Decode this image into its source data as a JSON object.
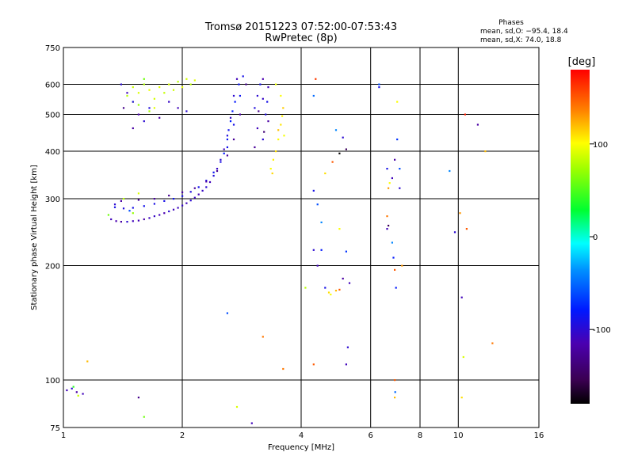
{
  "chart_data": {
    "type": "scatter",
    "title_line1": "Tromsø 20151223 07:52:00-07:53:43",
    "title_line2": "RwPretec (8p)",
    "stats": {
      "heading": "Phases",
      "line_o": "mean, sd,O: −95.4, 18.4",
      "line_x": "mean, sd,X:  74.0, 18.8"
    },
    "xlabel": "Frequency [MHz]",
    "ylabel": "Stationary phase Virtual Height [km]",
    "x_scale": "log",
    "y_scale": "log",
    "xlim": [
      1,
      16
    ],
    "ylim": [
      75,
      750
    ],
    "x_ticks": [
      1,
      2,
      4,
      6,
      8,
      10,
      16
    ],
    "x_gridlines": [
      2,
      4,
      6,
      8,
      10
    ],
    "y_ticks": [
      75,
      100,
      200,
      300,
      400,
      500,
      600,
      750
    ],
    "y_gridlines": [
      100,
      200,
      300,
      400,
      500,
      600
    ],
    "grid": true,
    "colorbar": {
      "label": "[deg]",
      "range": [
        -180,
        180
      ],
      "ticks": [
        100,
        0,
        -100
      ]
    },
    "series": [
      {
        "points": [
          [
            1.32,
            265,
            -110
          ],
          [
            1.36,
            262,
            -115
          ],
          [
            1.4,
            261,
            -120
          ],
          [
            1.45,
            261,
            -100
          ],
          [
            1.5,
            262,
            -110
          ],
          [
            1.55,
            263,
            -112
          ],
          [
            1.6,
            265,
            -118
          ],
          [
            1.65,
            267,
            -108
          ],
          [
            1.7,
            270,
            -105
          ],
          [
            1.75,
            272,
            -110
          ],
          [
            1.8,
            275,
            -115
          ],
          [
            1.85,
            278,
            -100
          ],
          [
            1.9,
            281,
            -110
          ],
          [
            1.95,
            284,
            -108
          ],
          [
            2.0,
            288,
            -105
          ],
          [
            2.05,
            292,
            -110
          ],
          [
            2.1,
            297,
            -100
          ],
          [
            2.15,
            302,
            -108
          ],
          [
            2.2,
            308,
            -112
          ],
          [
            2.25,
            315,
            -105
          ],
          [
            2.3,
            322,
            -100
          ],
          [
            2.35,
            332,
            -110
          ],
          [
            2.4,
            345,
            -95
          ],
          [
            2.45,
            360,
            -105
          ],
          [
            2.5,
            380,
            -100
          ],
          [
            2.55,
            405,
            -110
          ],
          [
            2.6,
            440,
            -95
          ],
          [
            2.65,
            490,
            -105
          ],
          [
            2.7,
            560,
            -100
          ],
          [
            2.75,
            620,
            -110
          ],
          [
            1.35,
            285,
            -90
          ],
          [
            1.42,
            283,
            -95
          ],
          [
            1.5,
            284,
            -90
          ],
          [
            1.6,
            287,
            -88
          ],
          [
            1.7,
            291,
            -92
          ],
          [
            1.8,
            296,
            -90
          ],
          [
            1.9,
            300,
            -85
          ],
          [
            2.0,
            305,
            -90
          ],
          [
            2.1,
            313,
            -95
          ],
          [
            2.2,
            322,
            -88
          ],
          [
            2.3,
            335,
            -90
          ],
          [
            2.4,
            352,
            -85
          ],
          [
            2.5,
            375,
            -92
          ],
          [
            2.6,
            410,
            -88
          ],
          [
            2.7,
            470,
            -90
          ],
          [
            2.8,
            560,
            -85
          ],
          [
            2.85,
            630,
            -90
          ],
          [
            1.4,
            296,
            -120
          ],
          [
            1.55,
            298,
            -125
          ],
          [
            1.7,
            300,
            -120
          ],
          [
            1.85,
            306,
            -128
          ],
          [
            2.0,
            312,
            -122
          ],
          [
            2.15,
            320,
            -125
          ],
          [
            2.3,
            333,
            -120
          ],
          [
            2.45,
            355,
            -128
          ],
          [
            2.6,
            390,
            -122
          ],
          [
            2.7,
            430,
            -125
          ],
          [
            2.8,
            500,
            -120
          ],
          [
            2.9,
            600,
            -128
          ],
          [
            2.55,
            395,
            -80
          ],
          [
            2.6,
            430,
            -82
          ],
          [
            2.65,
            480,
            -78
          ],
          [
            2.72,
            540,
            -80
          ],
          [
            2.78,
            600,
            -83
          ],
          [
            2.62,
            455,
            -86
          ],
          [
            2.68,
            510,
            -79
          ],
          [
            3.05,
            520,
            -95
          ],
          [
            3.1,
            560,
            -100
          ],
          [
            3.15,
            600,
            -90
          ],
          [
            3.2,
            550,
            -105
          ],
          [
            3.25,
            500,
            -95
          ],
          [
            3.1,
            460,
            -110
          ],
          [
            3.2,
            430,
            -100
          ],
          [
            3.3,
            480,
            -120
          ],
          [
            3.3,
            590,
            -110
          ],
          [
            3.05,
            410,
            -125
          ],
          [
            3.2,
            620,
            -115
          ],
          [
            3.28,
            540,
            -90
          ],
          [
            3.12,
            510,
            -130
          ],
          [
            3.22,
            450,
            -140
          ],
          [
            3.35,
            360,
            100
          ],
          [
            3.4,
            380,
            105
          ],
          [
            3.45,
            400,
            110
          ],
          [
            3.5,
            430,
            102
          ],
          [
            3.55,
            470,
            108
          ],
          [
            3.6,
            520,
            115
          ],
          [
            3.55,
            560,
            100
          ],
          [
            3.45,
            600,
            95
          ],
          [
            3.38,
            350,
            112
          ],
          [
            3.5,
            455,
            118
          ],
          [
            3.58,
            495,
            104
          ],
          [
            3.62,
            440,
            98
          ],
          [
            1.45,
            560,
            80
          ],
          [
            1.5,
            590,
            85
          ],
          [
            1.55,
            570,
            90
          ],
          [
            1.6,
            600,
            78
          ],
          [
            1.65,
            580,
            95
          ],
          [
            1.7,
            550,
            88
          ],
          [
            1.75,
            590,
            92
          ],
          [
            1.8,
            570,
            84
          ],
          [
            1.85,
            600,
            90
          ],
          [
            1.9,
            580,
            86
          ],
          [
            1.95,
            610,
            80
          ],
          [
            2.0,
            590,
            94
          ],
          [
            2.05,
            620,
            88
          ],
          [
            2.1,
            600,
            82
          ],
          [
            2.15,
            615,
            92
          ],
          [
            1.55,
            530,
            70
          ],
          [
            1.65,
            510,
            75
          ],
          [
            1.5,
            540,
            100
          ],
          [
            1.7,
            520,
            92
          ],
          [
            1.6,
            620,
            60
          ],
          [
            1.4,
            600,
            -100
          ],
          [
            1.45,
            570,
            -110
          ],
          [
            1.5,
            540,
            -90
          ],
          [
            1.55,
            500,
            -115
          ],
          [
            1.6,
            480,
            -100
          ],
          [
            1.5,
            460,
            -120
          ],
          [
            1.65,
            520,
            -95
          ],
          [
            1.85,
            540,
            -105
          ],
          [
            1.95,
            520,
            -110
          ],
          [
            2.05,
            510,
            -100
          ],
          [
            1.75,
            490,
            -118
          ],
          [
            1.42,
            520,
            -130
          ],
          [
            1.35,
            290,
            -100
          ],
          [
            1.42,
            300,
            80
          ],
          [
            1.55,
            310,
            90
          ],
          [
            1.3,
            272,
            60
          ],
          [
            1.47,
            279,
            -60
          ],
          [
            1.5,
            275,
            70
          ],
          [
            1.02,
            94,
            -110
          ],
          [
            1.05,
            95,
            -100
          ],
          [
            1.08,
            93,
            -120
          ],
          [
            1.12,
            92,
            -110
          ],
          [
            1.06,
            96,
            40
          ],
          [
            1.09,
            91,
            85
          ],
          [
            1.55,
            90,
            -130
          ],
          [
            1.6,
            80,
            60
          ],
          [
            1.15,
            112,
            120
          ],
          [
            2.6,
            150,
            -60
          ],
          [
            2.75,
            85,
            90
          ],
          [
            3.0,
            77,
            -110
          ],
          [
            3.2,
            130,
            140
          ],
          [
            3.6,
            107,
            140
          ],
          [
            4.1,
            175,
            80
          ],
          [
            4.3,
            110,
            150
          ],
          [
            4.3,
            220,
            -100
          ],
          [
            4.5,
            220,
            -80
          ],
          [
            4.4,
            200,
            -110
          ],
          [
            4.6,
            175,
            -90
          ],
          [
            4.7,
            170,
            110
          ],
          [
            4.75,
            168,
            100
          ],
          [
            4.9,
            172,
            120
          ],
          [
            5.0,
            173,
            150
          ],
          [
            5.1,
            185,
            -120
          ],
          [
            5.2,
            218,
            -70
          ],
          [
            5.25,
            122,
            -100
          ],
          [
            5.3,
            180,
            -110
          ],
          [
            5.2,
            110,
            -110
          ],
          [
            4.5,
            260,
            -40
          ],
          [
            4.3,
            560,
            -50
          ],
          [
            4.35,
            620,
            160
          ],
          [
            4.3,
            315,
            -90
          ],
          [
            4.4,
            290,
            -60
          ],
          [
            4.6,
            350,
            110
          ],
          [
            4.8,
            375,
            150
          ],
          [
            4.9,
            455,
            -40
          ],
          [
            5.0,
            395,
            -180
          ],
          [
            5.1,
            435,
            -100
          ],
          [
            5.2,
            405,
            -150
          ],
          [
            5.0,
            250,
            100
          ],
          [
            6.3,
            590,
            -90
          ],
          [
            6.3,
            600,
            -60
          ],
          [
            6.6,
            360,
            -90
          ],
          [
            6.7,
            330,
            100
          ],
          [
            6.8,
            340,
            -110
          ],
          [
            6.6,
            250,
            -110
          ],
          [
            6.8,
            230,
            -40
          ],
          [
            6.85,
            210,
            -80
          ],
          [
            6.9,
            195,
            150
          ],
          [
            6.95,
            175,
            -80
          ],
          [
            6.9,
            380,
            -120
          ],
          [
            7.0,
            430,
            -70
          ],
          [
            7.0,
            540,
            100
          ],
          [
            6.9,
            100,
            150
          ],
          [
            6.9,
            90,
            120
          ],
          [
            6.92,
            93,
            -50
          ],
          [
            7.1,
            360,
            -60
          ],
          [
            7.1,
            320,
            -100
          ],
          [
            6.6,
            270,
            140
          ],
          [
            6.65,
            320,
            130
          ],
          [
            6.65,
            255,
            -150
          ],
          [
            7.2,
            200,
            130
          ],
          [
            9.5,
            355,
            -40
          ],
          [
            9.8,
            245,
            -100
          ],
          [
            10.1,
            275,
            130
          ],
          [
            10.2,
            165,
            -110
          ],
          [
            10.3,
            115,
            90
          ],
          [
            10.4,
            500,
            170
          ],
          [
            10.5,
            250,
            150
          ],
          [
            11.2,
            470,
            -120
          ],
          [
            11.7,
            400,
            120
          ],
          [
            12.2,
            125,
            140
          ],
          [
            10.2,
            90,
            110
          ]
        ]
      }
    ]
  }
}
